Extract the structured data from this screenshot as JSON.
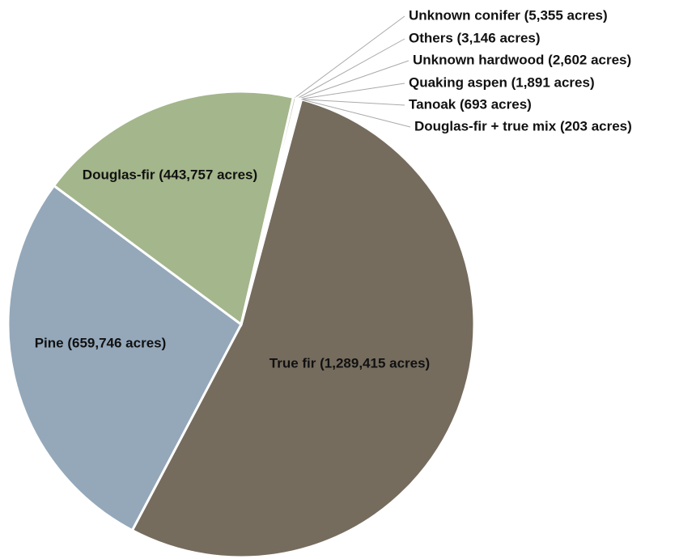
{
  "chart_data": {
    "type": "pie",
    "values": [
      1289415,
      659746,
      443757,
      5355,
      3146,
      2602,
      1891,
      693,
      203
    ],
    "value_labels": [
      "True fir (1,289,415 acres)",
      "Pine (659,746 acres)",
      "Douglas-fir (443,757 acres)",
      "Unknown conifer (5,355 acres)",
      "Others (3,146 acres)",
      "Unknown hardwood (2,602 acres)",
      "Quaking aspen (1,891 acres)",
      "Tanoak (693 acres)",
      "Douglas-fir + true mix (203 acres)"
    ],
    "colors": [
      "#756c5e",
      "#94a8ba",
      "#a4b68b",
      "#c9cbb8",
      "#d7d2c2",
      "#b9c6d2",
      "#c8d4b6",
      "#a9a090",
      "#dcdcdc"
    ]
  }
}
